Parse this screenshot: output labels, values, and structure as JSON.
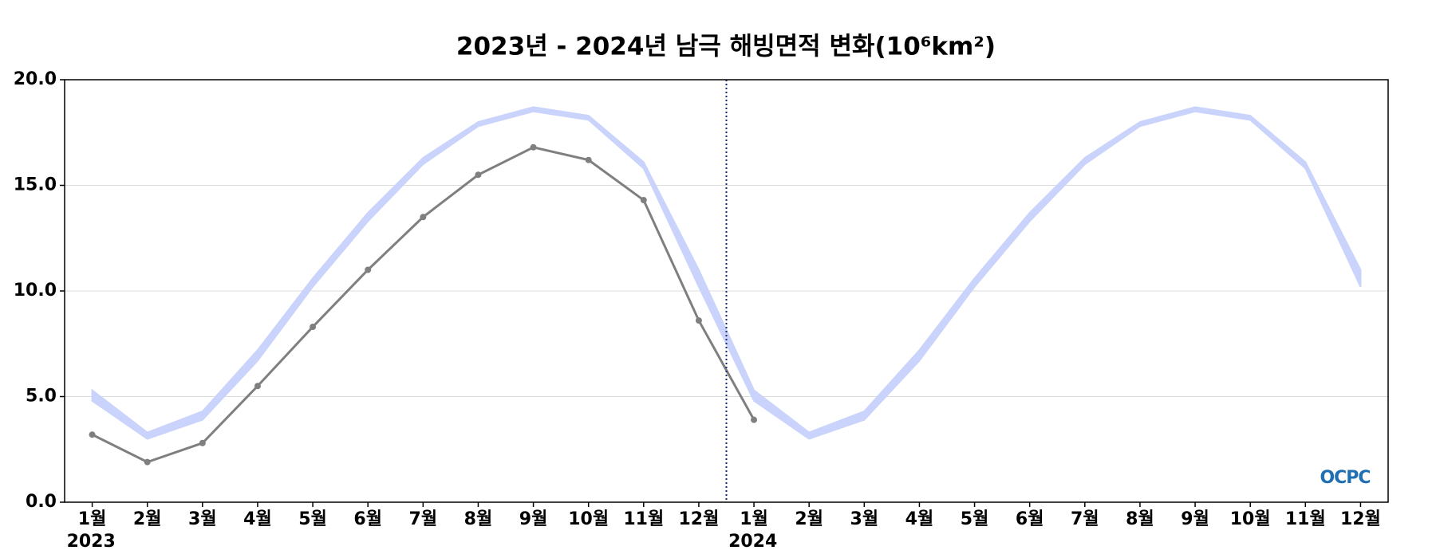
{
  "chart_data": {
    "type": "line",
    "title": "2023년 - 2024년 남극 해빙면적 변화(10⁶km²)",
    "categories": [
      "1월",
      "2월",
      "3월",
      "4월",
      "5월",
      "6월",
      "7월",
      "8월",
      "9월",
      "10월",
      "11월",
      "12월",
      "1월",
      "2월",
      "3월",
      "4월",
      "5월",
      "6월",
      "7월",
      "8월",
      "9월",
      "10월",
      "11월",
      "12월"
    ],
    "years": [
      "2023",
      null,
      null,
      null,
      null,
      null,
      null,
      null,
      null,
      null,
      null,
      null,
      "2024",
      null,
      null,
      null,
      null,
      null,
      null,
      null,
      null,
      null,
      null,
      null
    ],
    "band": {
      "color": "#c9d3fb",
      "upper": [
        5.3,
        3.3,
        4.3,
        7.2,
        10.6,
        13.7,
        16.3,
        18.0,
        18.7,
        18.3,
        16.1,
        11.0,
        5.3,
        3.3,
        4.3,
        7.2,
        10.6,
        13.7,
        16.3,
        18.0,
        18.7,
        18.3,
        16.1,
        11.0
      ],
      "lower": [
        4.8,
        3.0,
        3.9,
        6.7,
        10.2,
        13.3,
        16.0,
        17.8,
        18.5,
        18.1,
        15.8,
        10.2,
        4.8,
        3.0,
        3.9,
        6.7,
        10.2,
        13.3,
        16.0,
        17.8,
        18.5,
        18.1,
        15.8,
        10.2
      ]
    },
    "series": [
      {
        "color": "#7f7f7f",
        "values": [
          3.2,
          1.9,
          2.8,
          5.5,
          8.3,
          11.0,
          13.5,
          15.5,
          16.8,
          16.2,
          14.3,
          8.6,
          3.9,
          null,
          null,
          null,
          null,
          null,
          null,
          null,
          null,
          null,
          null,
          null
        ]
      }
    ],
    "ylim": [
      0,
      20
    ],
    "yticks": [
      {
        "value": 0,
        "label": "0.0"
      },
      {
        "value": 5,
        "label": "5.0"
      },
      {
        "value": 10,
        "label": "10.0"
      },
      {
        "value": 15,
        "label": "15.0"
      },
      {
        "value": 20,
        "label": "20.0"
      }
    ],
    "grid": true,
    "logo": "OCPC"
  }
}
